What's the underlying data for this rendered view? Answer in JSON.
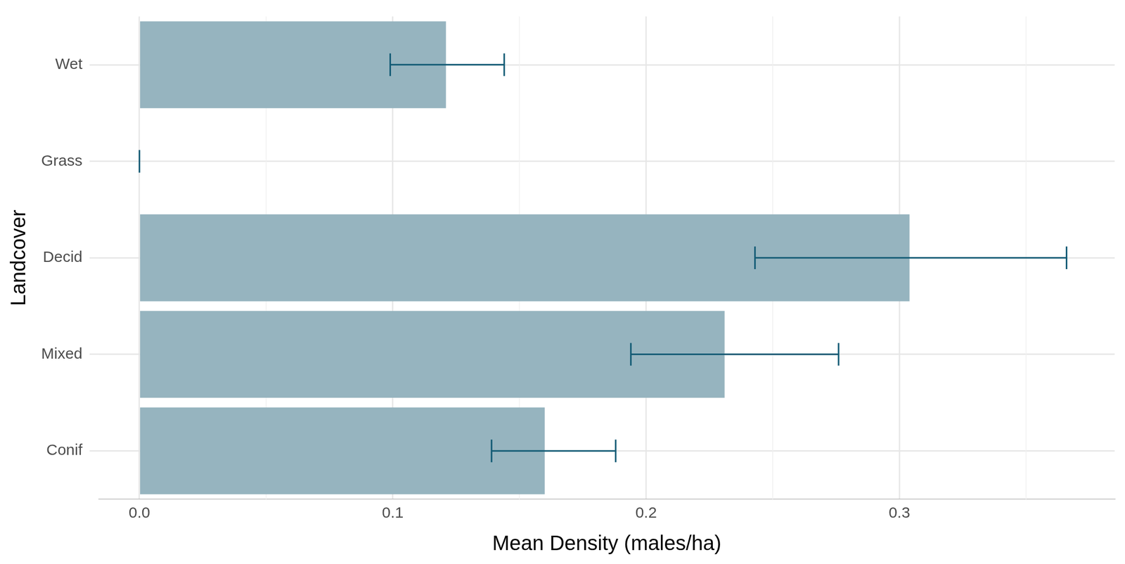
{
  "chart_data": {
    "type": "bar",
    "orientation": "horizontal",
    "x_label": "Mean Density (males/ha)",
    "y_label": "Landcover",
    "categories": [
      "Wet",
      "Grass",
      "Decid",
      "Mixed",
      "Conif"
    ],
    "values": [
      0.121,
      0,
      0.304,
      0.231,
      0.16
    ],
    "error_low": [
      0.099,
      0,
      0.243,
      0.194,
      0.139
    ],
    "error_high": [
      0.144,
      0,
      0.366,
      0.276,
      0.188
    ],
    "color": "#96b4bf",
    "error_color": "#135b75",
    "xlim": [
      -0.016,
      0.385
    ],
    "xticks": [
      {
        "value": 0,
        "label": "0.0"
      },
      0.1,
      0.2,
      0.3
    ],
    "grid": true
  }
}
